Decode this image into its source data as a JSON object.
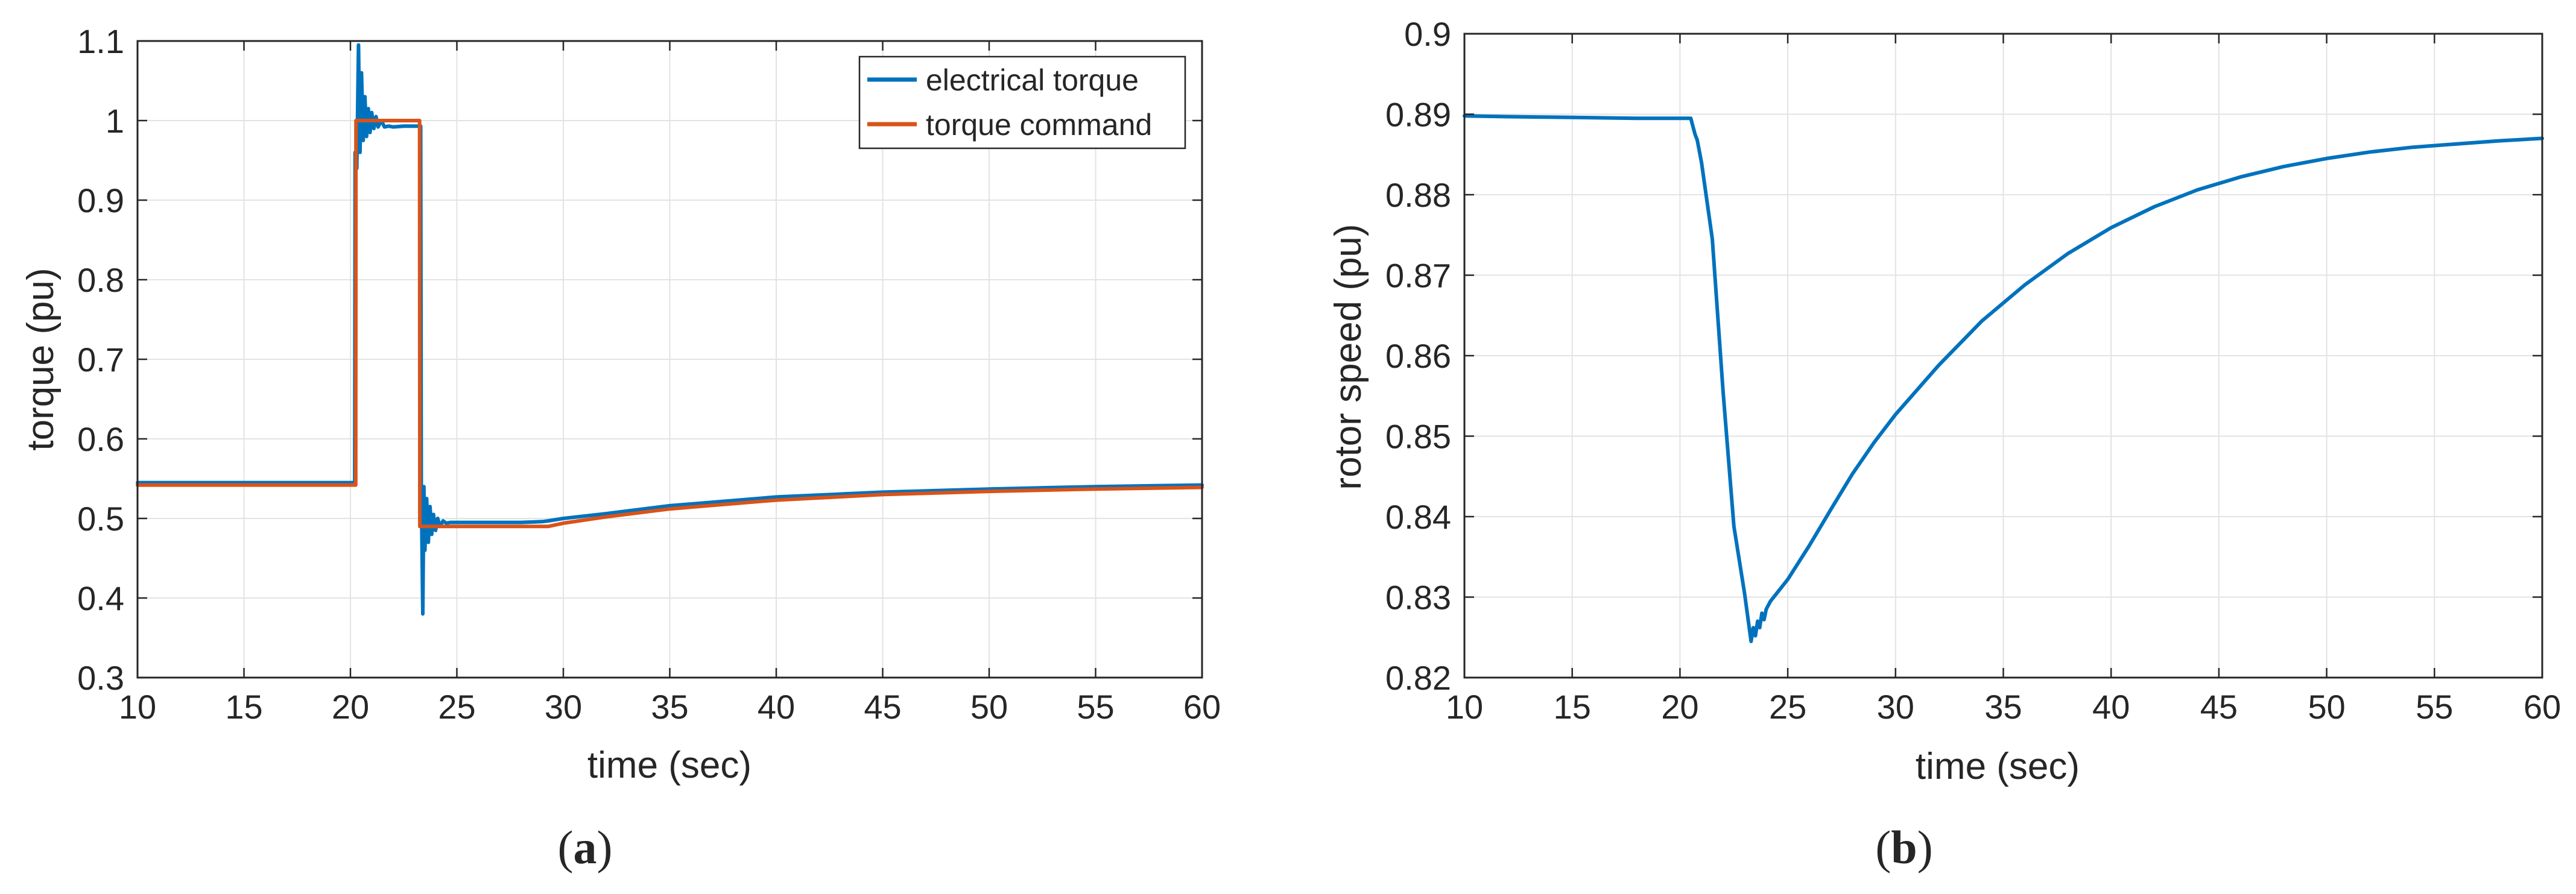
{
  "colors": {
    "electrical_torque": "#0072BD",
    "torque_command": "#D95319",
    "grid": "#e3e3e3",
    "axis": "#262626"
  },
  "chart_data": [
    {
      "type": "line",
      "panel_label": "(a)",
      "panel_letter": "a",
      "xlabel": "time (sec)",
      "ylabel": "torque (pu)",
      "xlim": [
        10,
        60
      ],
      "ylim": [
        0.3,
        1.1
      ],
      "xticks": [
        10,
        15,
        20,
        25,
        30,
        35,
        40,
        45,
        50,
        55,
        60
      ],
      "yticks": [
        0.3,
        0.4,
        0.5,
        0.6,
        0.7,
        0.8,
        0.9,
        1.0,
        1.1
      ],
      "ytick_labels": [
        "0.3",
        "0.4",
        "0.5",
        "0.6",
        "0.7",
        "0.8",
        "0.9",
        "1",
        "1.1"
      ],
      "grid": true,
      "legend": {
        "placement": "top-right",
        "entries": [
          "electrical torque",
          "torque command"
        ]
      },
      "series": [
        {
          "name": "electrical torque",
          "color": "#0072BD",
          "x": [
            10,
            20.2,
            20.22,
            20.3,
            20.38,
            20.45,
            20.52,
            20.6,
            20.68,
            20.76,
            20.84,
            20.92,
            21.0,
            21.1,
            21.2,
            21.3,
            21.45,
            21.6,
            21.8,
            22.0,
            22.5,
            23.0,
            23.3,
            23.33,
            23.4,
            23.45,
            23.5,
            23.58,
            23.66,
            23.74,
            23.82,
            23.9,
            24.0,
            24.1,
            24.2,
            24.35,
            24.5,
            24.7,
            25,
            26,
            27,
            28,
            29,
            29.3,
            30,
            32,
            35,
            40,
            45,
            50,
            55,
            60
          ],
          "y": [
            0.545,
            0.545,
            0.96,
            0.94,
            1.095,
            0.96,
            1.06,
            0.975,
            1.03,
            0.98,
            1.015,
            0.985,
            1.01,
            0.99,
            1.005,
            0.992,
            1.0,
            0.992,
            0.993,
            0.992,
            0.993,
            0.993,
            0.993,
            0.54,
            0.38,
            0.54,
            0.46,
            0.525,
            0.47,
            0.515,
            0.48,
            0.505,
            0.485,
            0.5,
            0.49,
            0.497,
            0.494,
            0.495,
            0.495,
            0.495,
            0.495,
            0.495,
            0.496,
            0.497,
            0.5,
            0.506,
            0.516,
            0.527,
            0.533,
            0.537,
            0.54,
            0.542
          ]
        },
        {
          "name": "torque command",
          "color": "#D95319",
          "x": [
            10,
            20.25,
            20.26,
            23.25,
            23.26,
            29.3,
            30,
            32,
            35,
            40,
            45,
            50,
            55,
            60
          ],
          "y": [
            0.542,
            0.542,
            1.0,
            1.0,
            0.49,
            0.49,
            0.494,
            0.502,
            0.512,
            0.523,
            0.53,
            0.534,
            0.537,
            0.539
          ]
        }
      ]
    },
    {
      "type": "line",
      "panel_label": "(b)",
      "panel_letter": "b",
      "xlabel": "time (sec)",
      "ylabel": "rotor speed (pu)",
      "xlim": [
        10,
        60
      ],
      "ylim": [
        0.82,
        0.9
      ],
      "xticks": [
        10,
        15,
        20,
        25,
        30,
        35,
        40,
        45,
        50,
        55,
        60
      ],
      "yticks": [
        0.82,
        0.83,
        0.84,
        0.85,
        0.86,
        0.87,
        0.88,
        0.89,
        0.9
      ],
      "ytick_labels": [
        "0.82",
        "0.83",
        "0.84",
        "0.85",
        "0.86",
        "0.87",
        "0.88",
        "0.89",
        "0.9"
      ],
      "grid": true,
      "series": [
        {
          "name": "rotor speed",
          "color": "#0072BD",
          "x": [
            10,
            12,
            15,
            18,
            20.5,
            20.6,
            20.7,
            20.8,
            21.0,
            21.5,
            22.0,
            22.5,
            23.0,
            23.3,
            23.4,
            23.5,
            23.6,
            23.7,
            23.8,
            23.9,
            24.0,
            24.2,
            25,
            26,
            27,
            28,
            29,
            30,
            32,
            34,
            36,
            38,
            40,
            42,
            44,
            46,
            48,
            50,
            52,
            54,
            56,
            58,
            60
          ],
          "y": [
            0.8898,
            0.8897,
            0.8896,
            0.8895,
            0.8895,
            0.8885,
            0.8875,
            0.8868,
            0.884,
            0.8745,
            0.8555,
            0.8388,
            0.8304,
            0.8245,
            0.8262,
            0.8252,
            0.827,
            0.8262,
            0.828,
            0.8272,
            0.8285,
            0.8295,
            0.8322,
            0.8364,
            0.8409,
            0.8453,
            0.8492,
            0.8527,
            0.8588,
            0.8643,
            0.8688,
            0.8727,
            0.8759,
            0.8785,
            0.8806,
            0.8822,
            0.8835,
            0.8845,
            0.8853,
            0.8859,
            0.8863,
            0.8867,
            0.887
          ]
        }
      ]
    }
  ]
}
